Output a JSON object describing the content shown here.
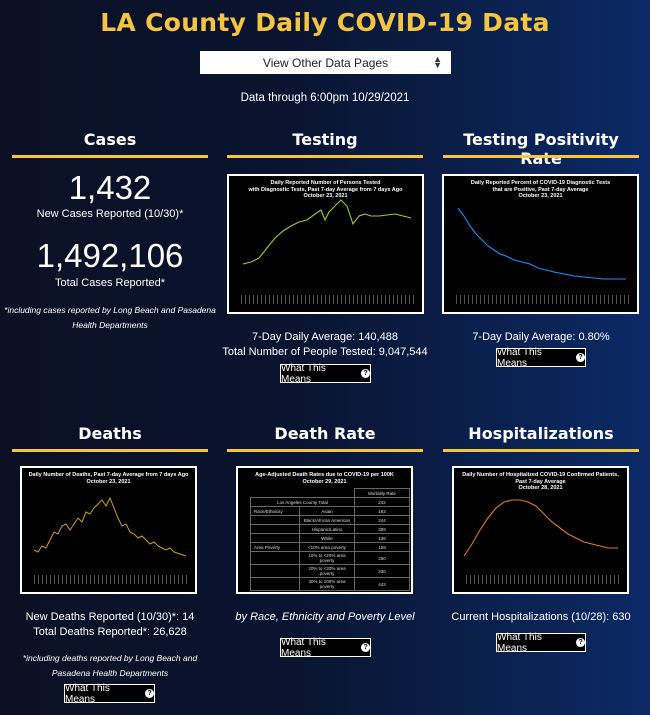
{
  "title": "LA County Daily COVID-19 Data",
  "selector": {
    "label": "View Other Data Pages"
  },
  "data_through": "Data through 6:00pm 10/29/2021",
  "what_this_means": "What This Means",
  "cases": {
    "heading": "Cases",
    "new_value": "1,432",
    "new_label": "New Cases Reported (10/30)*",
    "total_value": "1,492,106",
    "total_label": "Total Cases Reported*",
    "note_line1": "*including cases reported by Long Beach and Pasadena",
    "note_line2": "Health Departments"
  },
  "testing": {
    "heading": "Testing",
    "chart_title_1": "Daily Reported Number of Persons Tested",
    "chart_title_2": "with Diagnostic Tests, Past 7-day Average from 7 days Ago",
    "chart_title_3": "October 23, 2021",
    "avg": "7-Day Daily Average: 140,488",
    "total": "Total Number of People Tested: 9,047,544"
  },
  "positivity": {
    "heading": "Testing Positivity Rate",
    "chart_title_1": "Daily Reported Percent of COVID-19 Diagnostic Tests",
    "chart_title_2": "that are Positive, Past 7-day Average",
    "chart_title_3": "October 23, 2021",
    "avg": "7-Day Daily Average: 0.80%"
  },
  "deaths": {
    "heading": "Deaths",
    "chart_title_1": "Daily Number of Deaths, Past 7-day Average from 7 days Ago",
    "chart_title_2": "October 23, 2021",
    "new": "New Deaths Reported (10/30)*: 14",
    "total": "Total Deaths Reported*: 26,628",
    "note_line1": "*including deaths reported by Long Beach and",
    "note_line2": "Pasadena Health Departments"
  },
  "death_rate": {
    "heading": "Death Rate",
    "chart_title_1": "Age-Adjusted Death Rates due to COVID-19 per 100K",
    "chart_title_2": "October 29, 2021",
    "caption": "by Race, Ethnicity and Poverty Level",
    "table": {
      "col_header": "Mortality Rate",
      "county_label": "Los Angeles County Total",
      "county_value": "242",
      "rows": [
        {
          "group": "Race/Ethnicity",
          "label": "Asian",
          "value": "183"
        },
        {
          "group": "",
          "label": "Black/African American",
          "value": "244"
        },
        {
          "group": "",
          "label": "Hispanic/Latino",
          "value": "389"
        },
        {
          "group": "",
          "label": "White",
          "value": "138"
        },
        {
          "group": "Area Poverty",
          "label": "<10% area poverty",
          "value": "159"
        },
        {
          "group": "",
          "label": "10% to <20% area poverty",
          "value": "250"
        },
        {
          "group": "",
          "label": "20% to <30% area poverty",
          "value": "330"
        },
        {
          "group": "",
          "label": "30% to 100% area poverty",
          "value": "443"
        }
      ]
    }
  },
  "hospitalizations": {
    "heading": "Hospitalizations",
    "chart_title_1": "Daily Number of Hospitalized COVID-19 Confirmed Patients,",
    "chart_title_2": "Past 7-day Average",
    "chart_title_3": "October 28, 2021",
    "current": "Current Hospitalizations (10/28): 630"
  },
  "colors": {
    "accent": "#f5c542",
    "testing_line": "#9acd32",
    "positivity_line": "#1e90ff",
    "deaths_line": "#d4a017",
    "hosp_line": "#e07b24"
  }
}
